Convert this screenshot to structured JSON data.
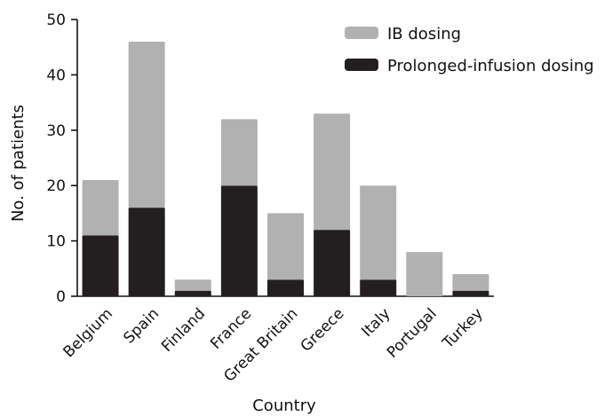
{
  "chart_data": {
    "type": "bar",
    "stacked": true,
    "categories": [
      "Belgium",
      "Spain",
      "Finland",
      "France",
      "Great Britain",
      "Greece",
      "Italy",
      "Portugal",
      "Turkey"
    ],
    "series": [
      {
        "name": "Prolonged-infusion dosing",
        "color": "#231f20",
        "values": [
          11,
          16,
          1,
          20,
          3,
          12,
          3,
          0,
          1
        ]
      },
      {
        "name": "IB dosing",
        "color": "#b1b1b1",
        "values": [
          10,
          30,
          2,
          12,
          12,
          21,
          17,
          8,
          3
        ]
      }
    ],
    "xlabel": "Country",
    "ylabel": "No. of patients",
    "ylim": [
      0,
      50
    ],
    "yticks": [
      0,
      10,
      20,
      30,
      40,
      50
    ],
    "grid": false,
    "legend": {
      "placement": "top-right",
      "entries": [
        {
          "label": "IB dosing",
          "color": "#b1b1b1"
        },
        {
          "label": "Prolonged-infusion dosing",
          "color": "#231f20"
        }
      ]
    }
  }
}
